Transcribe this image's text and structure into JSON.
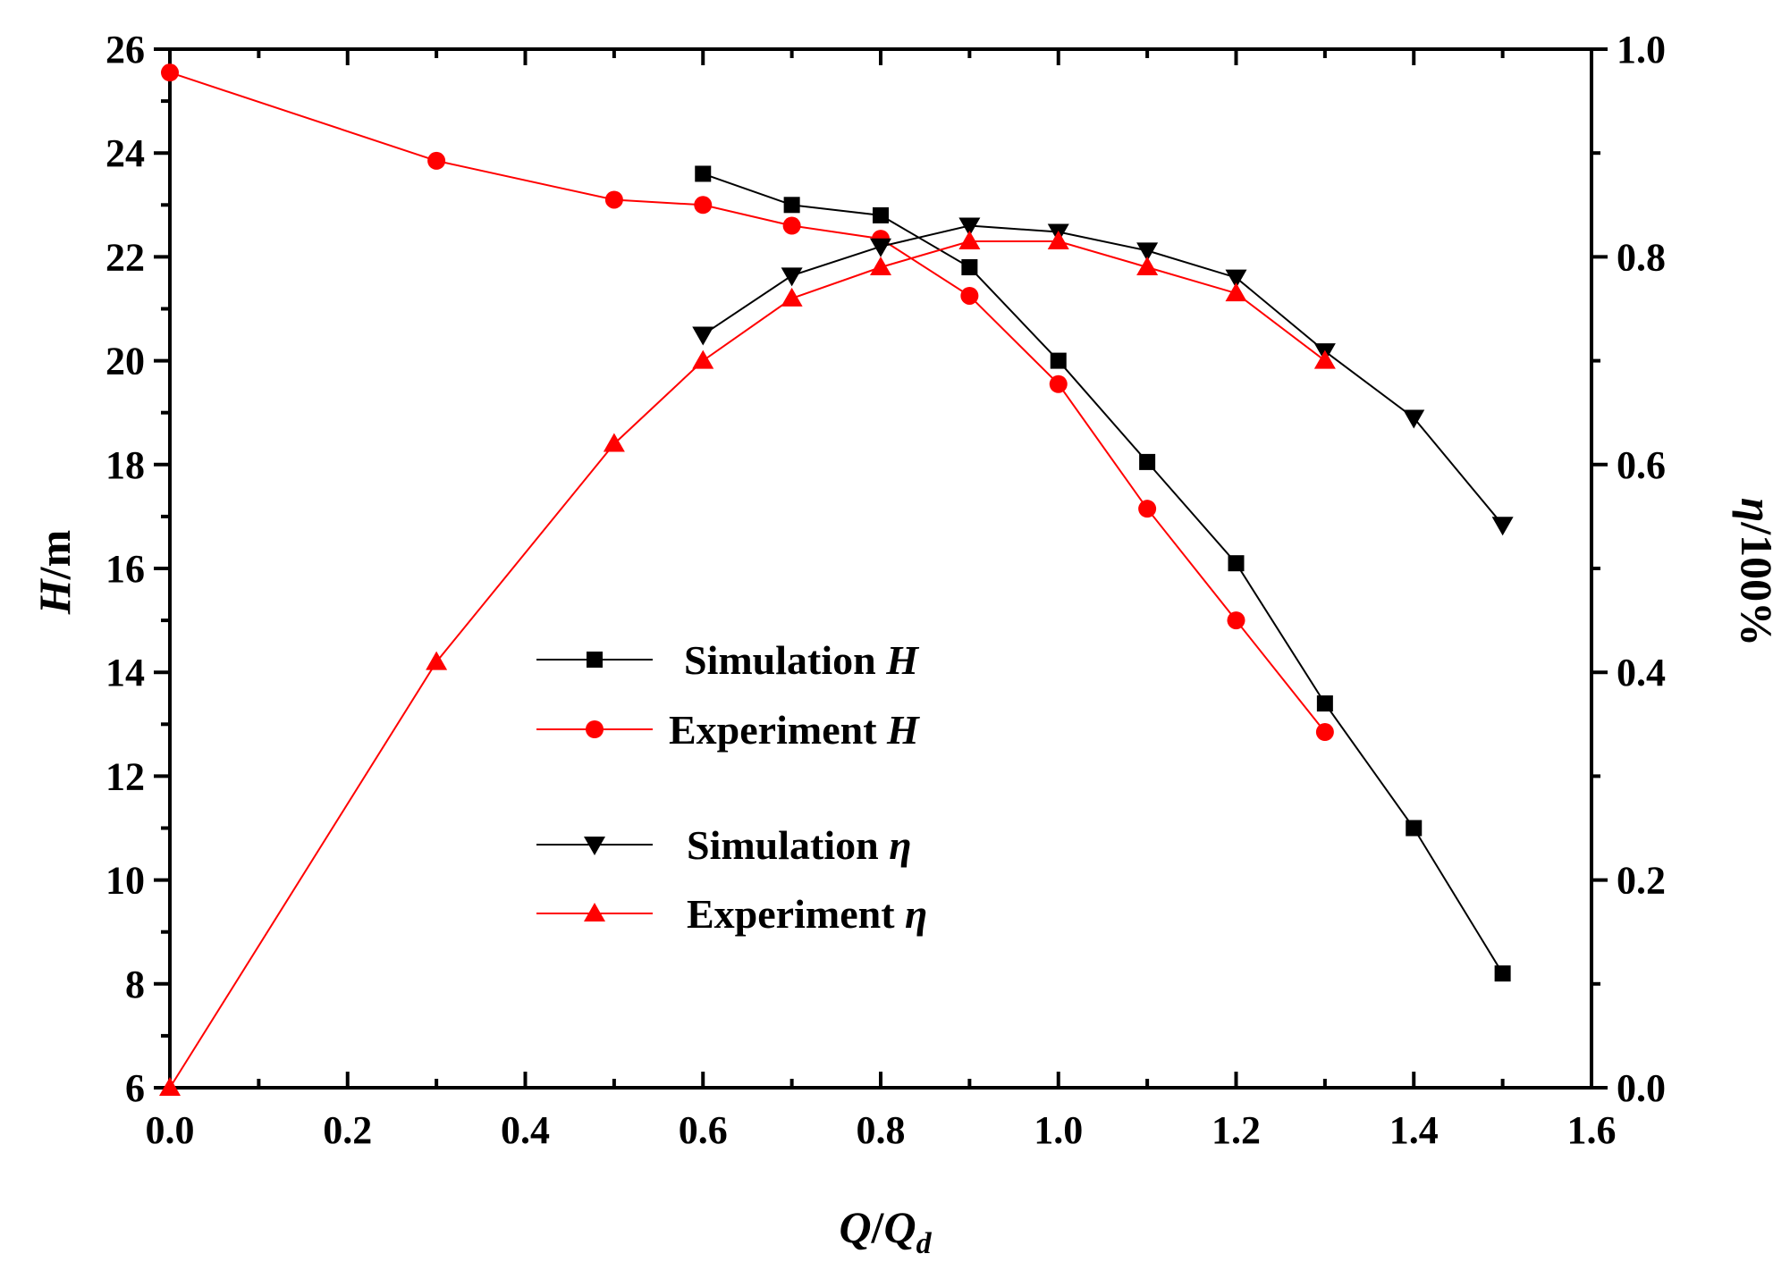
{
  "chart_data": {
    "type": "line",
    "x_axis": {
      "label_main": "Q",
      "label_sep": "/",
      "label_base": "Q",
      "label_sub": "d",
      "min": 0.0,
      "max": 1.6,
      "ticks": [
        "0.0",
        "0.2",
        "0.4",
        "0.6",
        "0.8",
        "1.0",
        "1.2",
        "1.4",
        "1.6"
      ]
    },
    "y_left": {
      "label_main": "H",
      "label_unit": "/m",
      "min": 6,
      "max": 26,
      "ticks": [
        "6",
        "8",
        "10",
        "12",
        "14",
        "16",
        "18",
        "20",
        "22",
        "24",
        "26"
      ]
    },
    "y_right": {
      "label_main": "η",
      "label_unit": "/100%",
      "min": 0.0,
      "max": 1.0,
      "ticks": [
        "0.0",
        "0.2",
        "0.4",
        "0.6",
        "0.8",
        "1.0"
      ]
    },
    "series": [
      {
        "name": "Simulation H",
        "label_text": "Simulation ",
        "label_symbol": "H",
        "axis": "left",
        "color": "#000000",
        "marker": "square",
        "x": [
          0.6,
          0.7,
          0.8,
          0.9,
          1.0,
          1.1,
          1.2,
          1.3,
          1.4,
          1.5
        ],
        "y": [
          23.6,
          23.0,
          22.8,
          21.8,
          20.0,
          18.05,
          16.1,
          13.4,
          11.0,
          8.2
        ]
      },
      {
        "name": "Experiment H",
        "label_text": "Experiment ",
        "label_symbol": "H",
        "axis": "left",
        "color": "#ff0000",
        "marker": "circle",
        "x": [
          0.0,
          0.3,
          0.5,
          0.6,
          0.7,
          0.8,
          0.9,
          1.0,
          1.1,
          1.2,
          1.3
        ],
        "y": [
          25.55,
          23.85,
          23.1,
          23.0,
          22.6,
          22.35,
          21.25,
          19.55,
          17.15,
          15.0,
          12.85
        ]
      },
      {
        "name": "Simulation η",
        "label_text": "Simulation  ",
        "label_symbol": "η",
        "axis": "right",
        "color": "#000000",
        "marker": "triangle-down",
        "x": [
          0.6,
          0.7,
          0.8,
          0.9,
          1.0,
          1.1,
          1.2,
          1.3,
          1.4,
          1.5
        ],
        "y": [
          0.725,
          0.782,
          0.81,
          0.83,
          0.824,
          0.806,
          0.78,
          0.709,
          0.645,
          0.542
        ]
      },
      {
        "name": "Experiment η",
        "label_text": "Experiment ",
        "label_symbol": "η",
        "axis": "right",
        "color": "#ff0000",
        "marker": "triangle-up",
        "x": [
          0.0,
          0.3,
          0.5,
          0.6,
          0.7,
          0.8,
          0.9,
          1.0,
          1.1,
          1.2,
          1.3
        ],
        "y": [
          0.0,
          0.41,
          0.62,
          0.7,
          0.76,
          0.79,
          0.815,
          0.815,
          0.79,
          0.765,
          0.7
        ]
      }
    ],
    "legend": {
      "position": "center-left"
    },
    "grid": false
  }
}
